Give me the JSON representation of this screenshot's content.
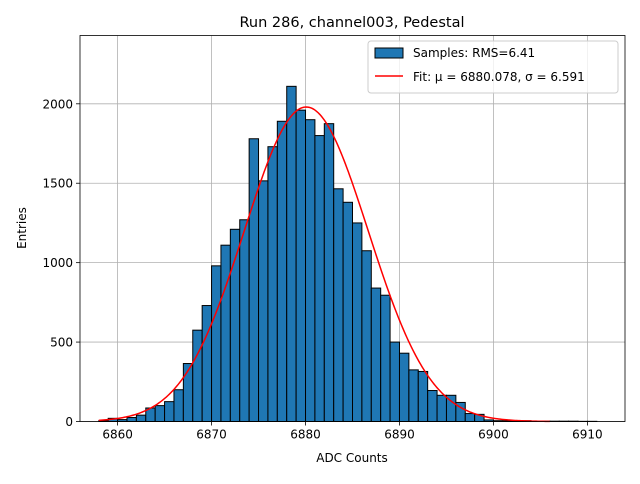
{
  "chart_data": {
    "type": "bar",
    "title": "Run 286, channel003, Pedestal",
    "xlabel": "ADC Counts",
    "ylabel": "Entries",
    "xlim": [
      6856,
      6914
    ],
    "ylim": [
      0,
      2430
    ],
    "xticks": [
      6860,
      6870,
      6880,
      6890,
      6900,
      6910
    ],
    "yticks": [
      0,
      500,
      1000,
      1500,
      2000
    ],
    "grid": true,
    "legend_position": "top-right",
    "bin_width": 1,
    "bin_start": 6858,
    "counts": [
      5,
      20,
      12,
      25,
      40,
      85,
      100,
      125,
      200,
      365,
      575,
      730,
      980,
      1110,
      1210,
      1270,
      1780,
      1515,
      1730,
      1890,
      2110,
      1960,
      1900,
      1800,
      1875,
      1465,
      1380,
      1250,
      1075,
      840,
      795,
      500,
      430,
      325,
      315,
      195,
      165,
      165,
      120,
      50,
      45,
      10,
      5,
      5,
      5,
      5,
      3,
      2,
      2,
      2,
      2,
      1,
      1
    ],
    "series": [
      {
        "name": "Samples: RMS=6.41",
        "kind": "histogram",
        "color": "#1f77b4",
        "edgecolor": "#000000"
      },
      {
        "name": "Fit: μ = 6880.078, σ = 6.591",
        "kind": "gaussian-fit",
        "color": "#ff0000",
        "mu": 6880.078,
        "sigma": 6.591,
        "amplitude": 1980,
        "x_range": [
          6858,
          6906
        ]
      }
    ]
  }
}
